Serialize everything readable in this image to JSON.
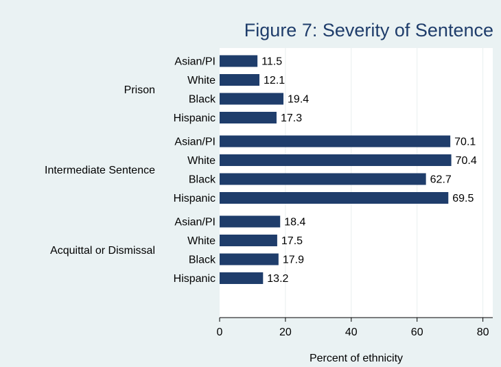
{
  "chart_data": {
    "type": "bar",
    "orientation": "horizontal",
    "title": "Figure 7: Severity of Sentence",
    "xlabel": "Percent of ethnicity",
    "ylabel": "",
    "xlim": [
      0,
      83
    ],
    "x_ticks": [
      0,
      20,
      40,
      60,
      80
    ],
    "grid": true,
    "groups": [
      {
        "label": "Prison",
        "categories": [
          "Asian/PI",
          "White",
          "Black",
          "Hispanic"
        ],
        "values": [
          11.5,
          12.1,
          19.4,
          17.3
        ],
        "value_labels": [
          "11.5",
          "12.1",
          "19.4",
          "17.3"
        ]
      },
      {
        "label": "Intermediate Sentence",
        "categories": [
          "Asian/PI",
          "White",
          "Black",
          "Hispanic"
        ],
        "values": [
          70.1,
          70.4,
          62.7,
          69.5
        ],
        "value_labels": [
          "70.1",
          "70.4",
          "62.7",
          "69.5"
        ]
      },
      {
        "label": "Acquittal or Dismissal",
        "categories": [
          "Asian/PI",
          "White",
          "Black",
          "Hispanic"
        ],
        "values": [
          18.4,
          17.5,
          17.9,
          13.2
        ],
        "value_labels": [
          "18.4",
          "17.5",
          "17.9",
          "13.2"
        ]
      }
    ],
    "colors": {
      "bar": "#1f3d6b",
      "plot_bg": "#ffffff",
      "outer_bg": "#eaf2f3",
      "grid": "#e8eeee",
      "title": "#1f3d6b"
    }
  }
}
